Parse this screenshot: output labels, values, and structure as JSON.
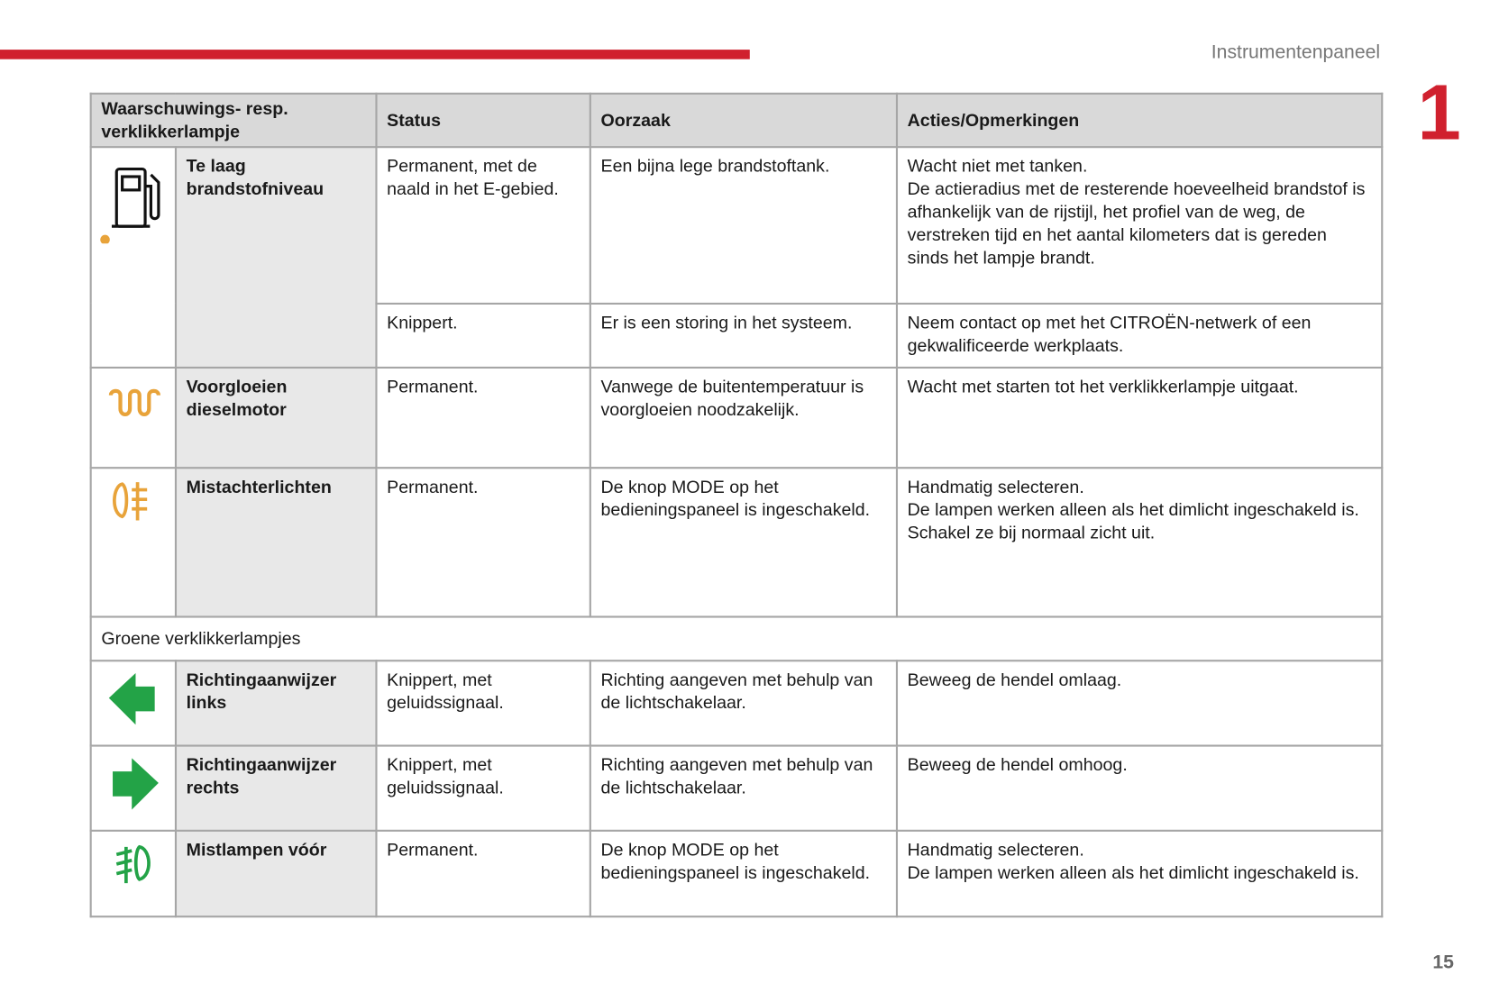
{
  "header": {
    "section": "Instrumentenpaneel",
    "chapter": "1"
  },
  "table": {
    "columns": [
      "Waarschuwings- resp. verklikkerlampje",
      "Status",
      "Oorzaak",
      "Acties/Opmerkingen"
    ],
    "rows": [
      {
        "lamp": "Te laag brandstofniveau",
        "entries": [
          {
            "status": "Permanent, met de naald in het E-gebied.",
            "cause": "Een bijna lege brandstoftank.",
            "action": [
              "Wacht niet met tanken.",
              "De actieradius met de resterende hoeveelheid brandstof is afhankelijk van de rijstijl, het profiel van de weg, de verstreken tijd en het aantal kilometers dat is gereden sinds het lampje brandt."
            ]
          },
          {
            "status": "Knippert.",
            "cause": "Er is een storing in het systeem.",
            "action": [
              "Neem contact op met het CITROËN-netwerk of een gekwalificeerde werkplaats."
            ]
          }
        ]
      },
      {
        "lamp": "Voorgloeien dieselmotor",
        "entries": [
          {
            "status": "Permanent.",
            "cause": "Vanwege de buitentemperatuur is voorgloeien noodzakelijk.",
            "action": [
              "Wacht met starten tot het verklikkerlampje uitgaat."
            ]
          }
        ]
      },
      {
        "lamp": "Mistachterlichten",
        "entries": [
          {
            "status": "Permanent.",
            "cause": "De knop MODE op het bedieningspaneel is ingeschakeld.",
            "action": [
              "Handmatig selecteren.",
              "De lampen werken alleen als het dimlicht ingeschakeld is.",
              "Schakel ze bij normaal zicht uit."
            ]
          }
        ]
      },
      {
        "group": "Groene verklikkerlampjes"
      },
      {
        "lamp": "Richtingaanwijzer links",
        "entries": [
          {
            "status": "Knippert, met geluidssignaal.",
            "cause": "Richting aangeven met behulp van de lichtschakelaar.",
            "action": [
              "Beweeg de hendel omlaag."
            ]
          }
        ]
      },
      {
        "lamp": "Richtingaanwijzer rechts",
        "entries": [
          {
            "status": "Knippert, met geluidssignaal.",
            "cause": "Richting aangeven met behulp van de lichtschakelaar.",
            "action": [
              "Beweeg de hendel omhoog."
            ]
          }
        ]
      },
      {
        "lamp": "Mistlampen vóór",
        "entries": [
          {
            "status": "Permanent.",
            "cause": "De knop MODE op het bedieningspaneel is ingeschakeld.",
            "action": [
              "Handmatig selecteren.",
              "De lampen werken alleen als het dimlicht ingeschakeld is."
            ]
          }
        ]
      }
    ]
  },
  "page_number": "15"
}
